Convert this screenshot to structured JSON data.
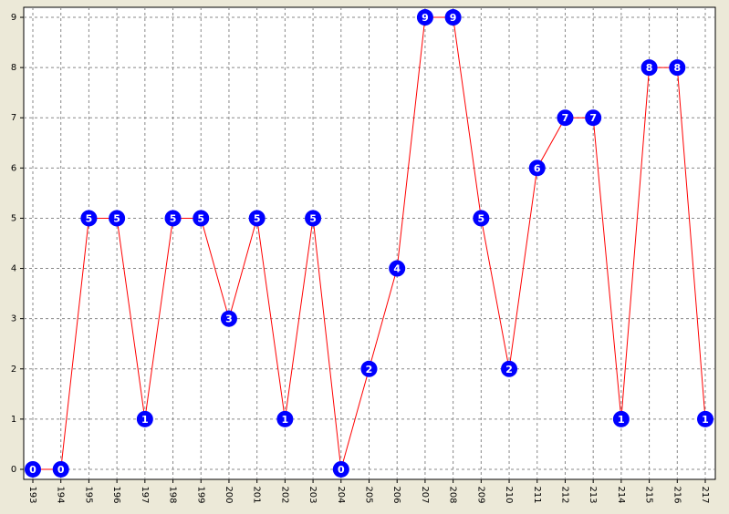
{
  "chart_data": {
    "type": "line",
    "categories": [
      "193",
      "194",
      "195",
      "196",
      "197",
      "198",
      "199",
      "200",
      "201",
      "202",
      "203",
      "204",
      "205",
      "206",
      "207",
      "208",
      "209",
      "210",
      "211",
      "212",
      "213",
      "214",
      "215",
      "216",
      "217"
    ],
    "series": [
      {
        "color": "#ff0000",
        "marker_color": "#0000ff",
        "values": [
          0,
          0,
          5,
          5,
          1,
          5,
          5,
          3,
          5,
          1,
          5,
          0,
          2,
          4,
          9,
          9,
          5,
          2,
          6,
          7,
          7,
          1,
          8,
          8,
          1
        ]
      }
    ],
    "ylim": [
      -0.2,
      9.2
    ],
    "yticks": [
      0,
      1,
      2,
      3,
      4,
      5,
      6,
      7,
      8,
      9
    ],
    "grid": true
  }
}
